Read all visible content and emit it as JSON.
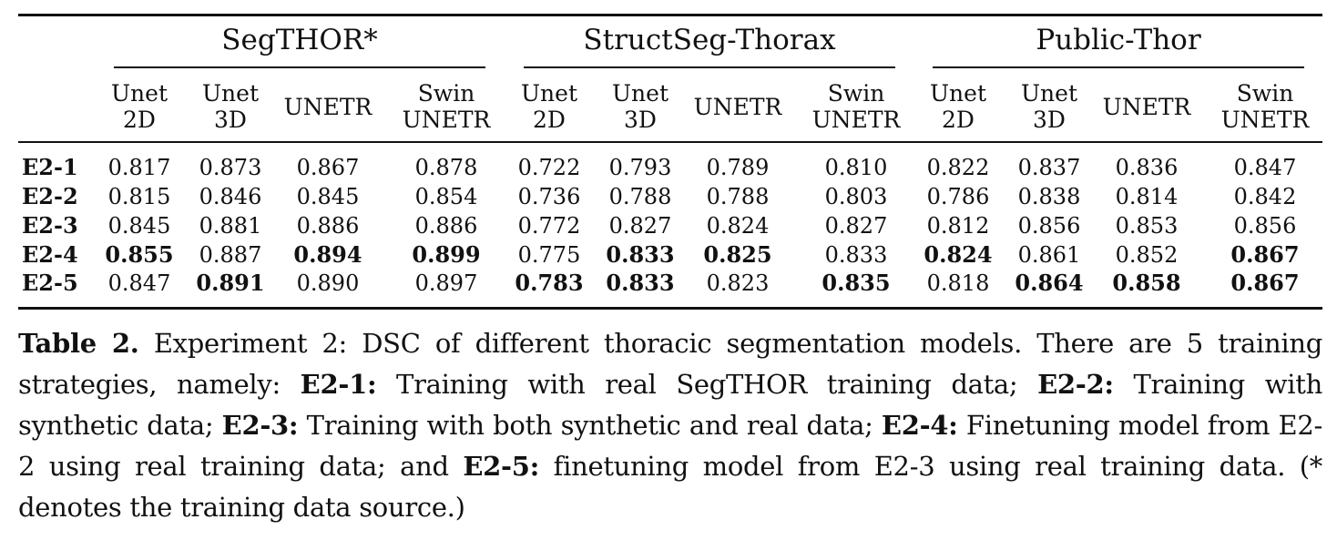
{
  "table": {
    "groups": [
      "SegTHOR*",
      "StructSeg-Thorax",
      "Public-Thor"
    ],
    "models": [
      {
        "line1": "Unet",
        "line2": "2D"
      },
      {
        "line1": "Unet",
        "line2": "3D"
      },
      {
        "line1": "UNETR",
        "line2": ""
      },
      {
        "line1": "Swin",
        "line2": "UNETR"
      }
    ],
    "rows": [
      {
        "label": "E2-1",
        "values": [
          "0.817",
          "0.873",
          "0.867",
          "0.878",
          "0.722",
          "0.793",
          "0.789",
          "0.810",
          "0.822",
          "0.837",
          "0.836",
          "0.847"
        ],
        "bold": []
      },
      {
        "label": "E2-2",
        "values": [
          "0.815",
          "0.846",
          "0.845",
          "0.854",
          "0.736",
          "0.788",
          "0.788",
          "0.803",
          "0.786",
          "0.838",
          "0.814",
          "0.842"
        ],
        "bold": []
      },
      {
        "label": "E2-3",
        "values": [
          "0.845",
          "0.881",
          "0.886",
          "0.886",
          "0.772",
          "0.827",
          "0.824",
          "0.827",
          "0.812",
          "0.856",
          "0.853",
          "0.856"
        ],
        "bold": []
      },
      {
        "label": "E2-4",
        "values": [
          "0.855",
          "0.887",
          "0.894",
          "0.899",
          "0.775",
          "0.833",
          "0.825",
          "0.833",
          "0.824",
          "0.861",
          "0.852",
          "0.867"
        ],
        "bold": [
          0,
          2,
          3,
          5,
          6,
          8,
          11
        ]
      },
      {
        "label": "E2-5",
        "values": [
          "0.847",
          "0.891",
          "0.890",
          "0.897",
          "0.783",
          "0.833",
          "0.823",
          "0.835",
          "0.818",
          "0.864",
          "0.858",
          "0.867"
        ],
        "bold": [
          1,
          4,
          5,
          7,
          9,
          10,
          11
        ]
      }
    ]
  },
  "caption": {
    "label": "Table 2.",
    "intro": " Experiment 2: DSC of different thoracic segmentation models. There are 5 training strategies, namely: ",
    "items": [
      {
        "key": "E2-1:",
        "text": " Training with real SegTHOR training data; "
      },
      {
        "key": "E2-2:",
        "text": " Training with synthetic data; "
      },
      {
        "key": "E2-3:",
        "text": " Training with both synthetic and real data; "
      },
      {
        "key": "E2-4:",
        "text": " Finetuning model from E2-2 using real training data; and "
      },
      {
        "key": "E2-5:",
        "text": " finetuning model from E2-3 using real training data. "
      }
    ],
    "note": "(* denotes the training data source.)"
  }
}
